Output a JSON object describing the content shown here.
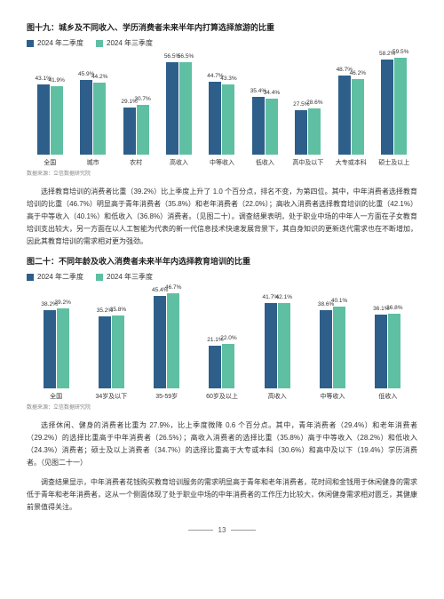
{
  "colors": {
    "q2": "#2e5f8a",
    "q3": "#5fbfa3"
  },
  "legend": {
    "q2": "2024 年二季度",
    "q3": "2024 年三季度"
  },
  "chart19": {
    "title": "图十九：城乡及不同收入、学历消费者未来半年内打算选择旅游的比重",
    "ymax": 60,
    "categories": [
      {
        "label": "全国",
        "q2": 43.1,
        "q3": 41.9
      },
      {
        "label": "城市",
        "q2": 45.9,
        "q3": 44.2
      },
      {
        "label": "农村",
        "q2": 29.1,
        "q3": 30.7
      },
      {
        "label": "高收入",
        "q2": 56.5,
        "q3": 56.5
      },
      {
        "label": "中等收入",
        "q2": 44.7,
        "q3": 43.3
      },
      {
        "label": "低收入",
        "q2": 35.4,
        "q3": 34.4
      },
      {
        "label": "高中及以下",
        "q2": 27.5,
        "q3": 28.6
      },
      {
        "label": "大专或本科",
        "q2": 48.7,
        "q3": 46.2
      },
      {
        "label": "硕士及以上",
        "q2": 58.2,
        "q3": 59.5
      }
    ],
    "source": "数据来源：立信数据研究院"
  },
  "para1": "选择教育培训的消费者比重（39.2%）比上季度上升了 1.0 个百分点，排名不变，为第四位。其中，中年消费者选择教育培训的比重（46.7%）明显高于青年消费者（35.8%）和老年消费者（22.0%）；高收入消费者选择教育培训的比重（42.1%）高于中等收入（40.1%）和低收入（36.8%）消费者。（见图二十）。调查结果表明，处于职业中场的中年人一方面在子女教育培训支出较大，另一方面在以人工智能为代表的新一代信息技术快速发展背景下，其自身知识的更新迭代需求也在不断增加，因此其教育培训的需求相对更为强劲。",
  "chart20": {
    "title": "图二十：不同年龄及收入消费者未来半年内选择教育培训的比重",
    "ymax": 48,
    "categories": [
      {
        "label": "全国",
        "q2": 38.2,
        "q3": 39.2
      },
      {
        "label": "34岁及以下",
        "q2": 35.2,
        "q3": 35.8
      },
      {
        "label": "35-59岁",
        "q2": 45.4,
        "q3": 46.7
      },
      {
        "label": "60岁及以上",
        "q2": 21.1,
        "q3": 22.0
      },
      {
        "label": "高收入",
        "q2": 41.7,
        "q3": 42.1
      },
      {
        "label": "中等收入",
        "q2": 38.6,
        "q3": 40.1
      },
      {
        "label": "低收入",
        "q2": 36.1,
        "q3": 36.8
      }
    ],
    "source": "数据来源：立信数据研究院"
  },
  "para2": "选择休闲、健身的消费者比重为 27.9%，比上季度微降 0.6 个百分点。其中，青年消费者（29.4%）和老年消费者（29.2%）的选择比重高于中年消费者（26.5%）；高收入消费者的选择比重（35.8%）高于中等收入（28.2%）和低收入（24.3%）消费者；硕士及以上消费者（34.7%）的选择比重高于大专或本科（30.6%）和高中及以下（19.4%）学历消费者。（见图二十一）",
  "para3": "调查结果显示，中年消费者花钱购买教育培训服务的需求明显高于青年和老年消费者，花时间和金钱用于休闲健身的需求低于青年和老年消费者，这从一个侧面体现了处于职业中场的中年消费者的工作压力比较大，休闲健身需求相对匮乏，其健康前景值得关注。",
  "pagenum": "13"
}
